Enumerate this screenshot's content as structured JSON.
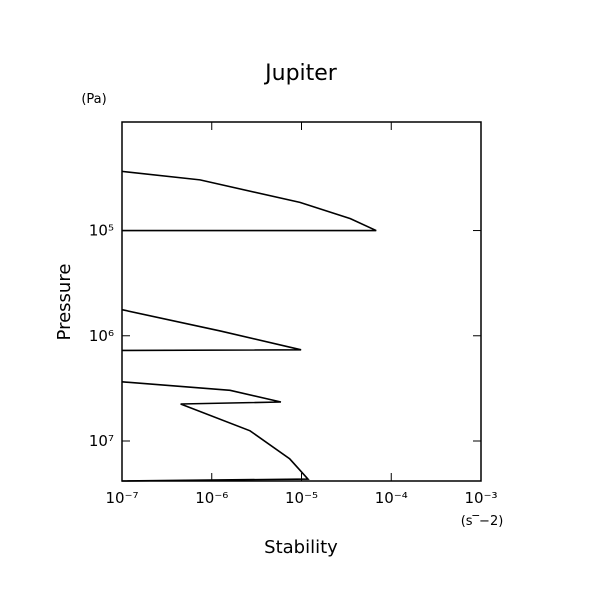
{
  "chart_data": {
    "type": "line",
    "title": "Jupiter",
    "x_label": "Stability",
    "y_label": "Pressure",
    "x_unit": "(s‾−2)",
    "y_unit": "(Pa)",
    "x_log": true,
    "y_log": true,
    "y_inverted": true,
    "xlim": [
      1e-07,
      0.001
    ],
    "ylim": [
      9300,
      24000000
    ],
    "xticks": [
      {
        "value": 1e-07,
        "label": "10⁻⁷"
      },
      {
        "value": 1e-06,
        "label": "10⁻⁶"
      },
      {
        "value": 1e-05,
        "label": "10⁻⁵"
      },
      {
        "value": 0.0001,
        "label": "10⁻⁴"
      },
      {
        "value": 0.001,
        "label": "10⁻³"
      }
    ],
    "yticks": [
      {
        "value": 100000,
        "label": "10⁵"
      },
      {
        "value": 1000000,
        "label": "10⁶"
      },
      {
        "value": 10000000,
        "label": "10⁷"
      }
    ],
    "x": [
      1e-07,
      7.4e-07,
      9.6e-06,
      3.5e-05,
      6.8e-05,
      1e-07,
      null,
      1e-07,
      1.24e-06,
      9.9e-06,
      1e-07,
      null,
      1e-07,
      1.6e-06,
      5.9e-06,
      4.5e-07,
      2.67e-06,
      7.4e-06,
      1.18e-05,
      1e-07
    ],
    "series": [
      {
        "color": "#000000",
        "values": [
          27400,
          33000,
          54000,
          77000,
          100000,
          100000,
          null,
          565000,
          900000,
          1360000,
          1380000,
          null,
          2740000,
          3300000,
          4260000,
          4450000,
          8000000,
          14800000,
          23000000,
          24000000
        ]
      }
    ]
  }
}
